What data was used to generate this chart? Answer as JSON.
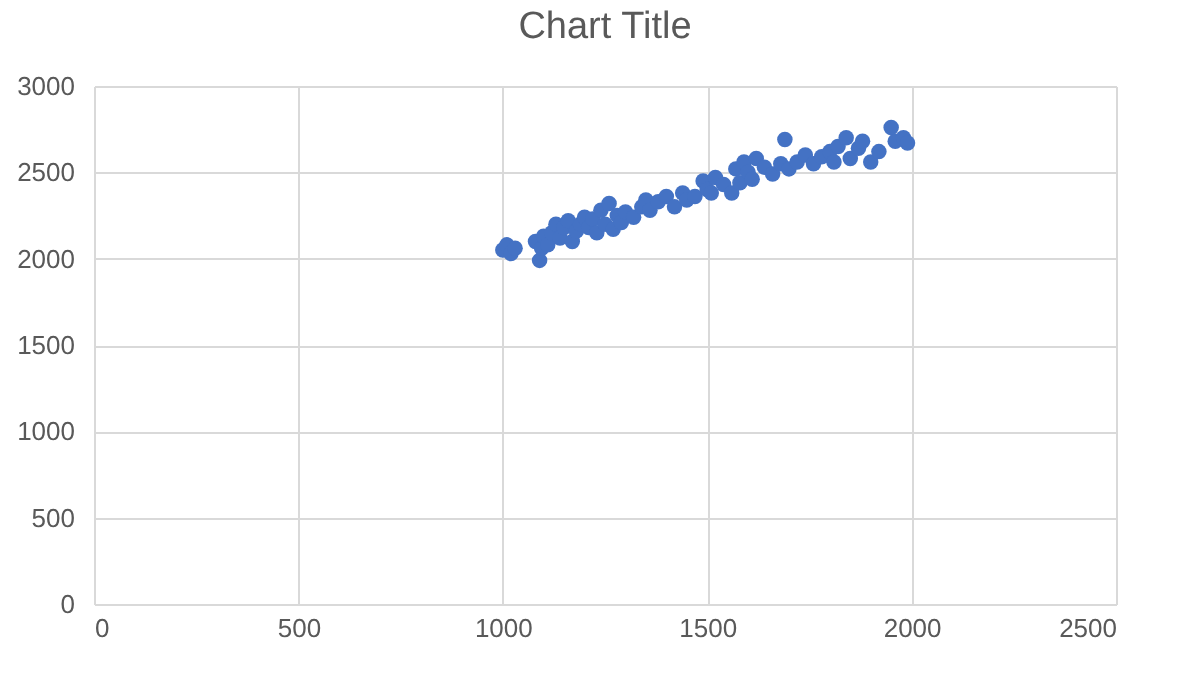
{
  "chart_data": {
    "type": "scatter",
    "title": "Chart Title",
    "marker": "circle",
    "grid": true,
    "x": [
      1000,
      1010,
      1020,
      1030,
      1080,
      1090,
      1095,
      1100,
      1110,
      1120,
      1130,
      1140,
      1150,
      1160,
      1170,
      1180,
      1190,
      1200,
      1210,
      1220,
      1230,
      1240,
      1250,
      1260,
      1270,
      1280,
      1290,
      1300,
      1320,
      1340,
      1350,
      1360,
      1380,
      1400,
      1420,
      1440,
      1450,
      1470,
      1490,
      1500,
      1510,
      1520,
      1540,
      1560,
      1570,
      1580,
      1590,
      1600,
      1610,
      1620,
      1640,
      1660,
      1680,
      1690,
      1700,
      1720,
      1740,
      1760,
      1780,
      1800,
      1810,
      1820,
      1840,
      1850,
      1870,
      1880,
      1900,
      1920,
      1950,
      1960,
      1980,
      1990
    ],
    "values": [
      2050,
      2080,
      2030,
      2060,
      2100,
      1990,
      2060,
      2130,
      2080,
      2150,
      2200,
      2120,
      2180,
      2220,
      2100,
      2160,
      2200,
      2240,
      2180,
      2230,
      2150,
      2280,
      2200,
      2320,
      2170,
      2250,
      2210,
      2270,
      2240,
      2300,
      2340,
      2280,
      2330,
      2360,
      2300,
      2380,
      2340,
      2360,
      2450,
      2400,
      2380,
      2470,
      2430,
      2380,
      2520,
      2440,
      2560,
      2500,
      2460,
      2580,
      2530,
      2490,
      2550,
      2690,
      2520,
      2560,
      2600,
      2550,
      2590,
      2620,
      2560,
      2650,
      2700,
      2580,
      2640,
      2680,
      2560,
      2620,
      2760,
      2680,
      2700,
      2670
    ],
    "color": "#4472c4",
    "xlim": [
      0,
      2500
    ],
    "xticks": [
      0,
      500,
      1000,
      1500,
      2000,
      2500
    ],
    "ylim": [
      0,
      3000
    ],
    "yticks": [
      0,
      500,
      1000,
      1500,
      2000,
      2500,
      3000
    ]
  }
}
